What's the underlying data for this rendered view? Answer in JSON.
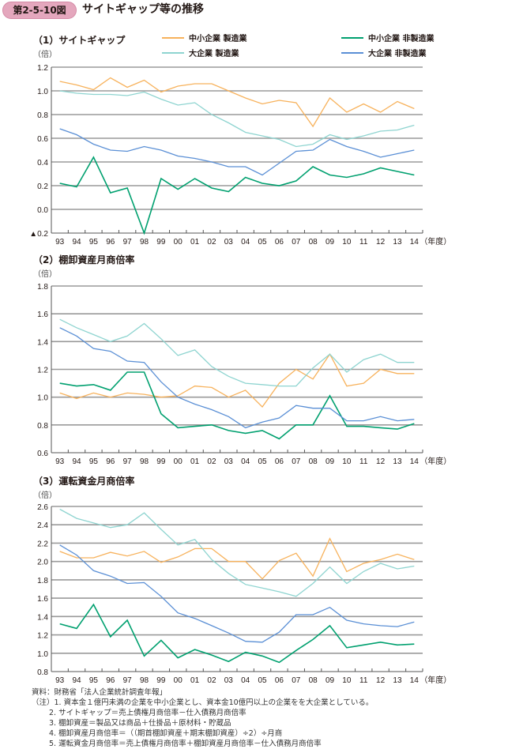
{
  "header": {
    "figure_number": "第2-5-10図",
    "title": "サイトギャップ等の推移"
  },
  "legend": [
    {
      "label": "中小企業 製造業",
      "color": "#f7b25c"
    },
    {
      "label": "中小企業 非製造業",
      "color": "#00a06f"
    },
    {
      "label": "大企業 製造業",
      "color": "#8ed4d0"
    },
    {
      "label": "大企業 非製造業",
      "color": "#5a8fd5"
    }
  ],
  "chart_data": [
    {
      "type": "line",
      "title": "（1）サイトギャップ",
      "ylabel": "（倍）",
      "xlabel_suffix": "（年度）",
      "ylim": [
        -0.2,
        1.2
      ],
      "yticks": [
        -0.2,
        0.0,
        0.2,
        0.4,
        0.6,
        0.8,
        1.0,
        1.2
      ],
      "ytick_labels": [
        "▲0.2",
        "0.0",
        "0.2",
        "0.4",
        "0.6",
        "0.8",
        "1.0",
        "1.2"
      ],
      "grid": true,
      "legend_position": "top",
      "categories": [
        "93",
        "94",
        "95",
        "96",
        "97",
        "98",
        "99",
        "00",
        "01",
        "02",
        "03",
        "04",
        "05",
        "06",
        "07",
        "08",
        "09",
        "10",
        "11",
        "12",
        "13",
        "14"
      ],
      "series": [
        {
          "name": "中小企業 製造業",
          "values": [
            1.08,
            1.05,
            1.01,
            1.11,
            1.03,
            1.09,
            0.99,
            1.04,
            1.06,
            1.06,
            1.0,
            0.94,
            0.89,
            0.92,
            0.9,
            0.7,
            0.94,
            0.82,
            0.89,
            0.82,
            0.91,
            0.85
          ]
        },
        {
          "name": "中小企業 非製造業",
          "values": [
            0.22,
            0.19,
            0.44,
            0.14,
            0.18,
            -0.2,
            0.26,
            0.17,
            0.26,
            0.18,
            0.15,
            0.27,
            0.22,
            0.2,
            0.24,
            0.36,
            0.29,
            0.27,
            0.3,
            0.35,
            0.32,
            0.29
          ]
        },
        {
          "name": "大企業 製造業",
          "values": [
            1.0,
            0.98,
            0.97,
            0.97,
            0.96,
            0.99,
            0.93,
            0.88,
            0.9,
            0.8,
            0.73,
            0.65,
            0.62,
            0.59,
            0.53,
            0.55,
            0.63,
            0.59,
            0.62,
            0.66,
            0.67,
            0.71
          ]
        },
        {
          "name": "大企業 非製造業",
          "values": [
            0.68,
            0.63,
            0.55,
            0.5,
            0.49,
            0.53,
            0.5,
            0.45,
            0.43,
            0.4,
            0.36,
            0.36,
            0.29,
            0.39,
            0.49,
            0.5,
            0.59,
            0.53,
            0.49,
            0.44,
            0.47,
            0.5
          ]
        }
      ]
    },
    {
      "type": "line",
      "title": "（2）棚卸資産月商倍率",
      "ylabel": "（倍）",
      "xlabel_suffix": "（年度）",
      "ylim": [
        0.6,
        1.8
      ],
      "yticks": [
        0.6,
        0.8,
        1.0,
        1.2,
        1.4,
        1.6,
        1.8
      ],
      "ytick_labels": [
        "0.6",
        "0.8",
        "1.0",
        "1.2",
        "1.4",
        "1.6",
        "1.8"
      ],
      "grid": true,
      "categories": [
        "93",
        "94",
        "95",
        "96",
        "97",
        "98",
        "99",
        "00",
        "01",
        "02",
        "03",
        "04",
        "05",
        "06",
        "07",
        "08",
        "09",
        "10",
        "11",
        "12",
        "13",
        "14"
      ],
      "series": [
        {
          "name": "中小企業 製造業",
          "values": [
            1.03,
            0.99,
            1.03,
            1.0,
            1.03,
            1.02,
            1.0,
            1.01,
            1.08,
            1.07,
            1.0,
            1.05,
            0.93,
            1.1,
            1.2,
            1.13,
            1.31,
            1.08,
            1.1,
            1.2,
            1.17,
            1.17
          ]
        },
        {
          "name": "中小企業 非製造業",
          "values": [
            1.1,
            1.08,
            1.09,
            1.05,
            1.18,
            1.18,
            0.88,
            0.78,
            0.79,
            0.8,
            0.76,
            0.74,
            0.76,
            0.7,
            0.8,
            0.8,
            1.01,
            0.79,
            0.79,
            0.78,
            0.77,
            0.81
          ]
        },
        {
          "name": "大企業 製造業",
          "values": [
            1.56,
            1.5,
            1.45,
            1.4,
            1.44,
            1.53,
            1.42,
            1.3,
            1.34,
            1.22,
            1.15,
            1.1,
            1.09,
            1.08,
            1.08,
            1.21,
            1.31,
            1.18,
            1.27,
            1.31,
            1.25,
            1.25
          ]
        },
        {
          "name": "大企業 非製造業",
          "values": [
            1.5,
            1.44,
            1.35,
            1.33,
            1.26,
            1.25,
            1.11,
            1.0,
            0.95,
            0.91,
            0.86,
            0.78,
            0.82,
            0.85,
            0.94,
            0.92,
            0.92,
            0.83,
            0.83,
            0.86,
            0.83,
            0.84
          ]
        }
      ]
    },
    {
      "type": "line",
      "title": "（3）運転資金月商倍率",
      "ylabel": "（倍）",
      "xlabel_suffix": "（年度）",
      "ylim": [
        0.8,
        2.6
      ],
      "yticks": [
        0.8,
        1.0,
        1.2,
        1.4,
        1.6,
        1.8,
        2.0,
        2.2,
        2.4,
        2.6
      ],
      "ytick_labels": [
        "0.8",
        "1.0",
        "1.2",
        "1.4",
        "1.6",
        "1.8",
        "2.0",
        "2.2",
        "2.4",
        "2.6"
      ],
      "grid": true,
      "categories": [
        "93",
        "94",
        "95",
        "96",
        "97",
        "98",
        "99",
        "00",
        "01",
        "02",
        "03",
        "04",
        "05",
        "06",
        "07",
        "08",
        "09",
        "10",
        "11",
        "12",
        "13",
        "14"
      ],
      "series": [
        {
          "name": "中小企業 製造業",
          "values": [
            2.11,
            2.04,
            2.04,
            2.1,
            2.06,
            2.11,
            1.99,
            2.05,
            2.14,
            2.14,
            2.0,
            2.0,
            1.81,
            2.01,
            2.09,
            1.84,
            2.25,
            1.89,
            1.98,
            2.02,
            2.08,
            2.02
          ]
        },
        {
          "name": "中小企業 非製造業",
          "values": [
            1.32,
            1.27,
            1.53,
            1.18,
            1.36,
            0.97,
            1.14,
            0.95,
            1.04,
            0.98,
            0.91,
            1.01,
            0.97,
            0.9,
            1.03,
            1.15,
            1.3,
            1.06,
            1.09,
            1.12,
            1.09,
            1.1
          ]
        },
        {
          "name": "大企業 製造業",
          "values": [
            2.57,
            2.47,
            2.42,
            2.37,
            2.4,
            2.53,
            2.35,
            2.18,
            2.24,
            2.02,
            1.87,
            1.75,
            1.71,
            1.67,
            1.62,
            1.76,
            1.94,
            1.76,
            1.89,
            1.98,
            1.92,
            1.95
          ]
        },
        {
          "name": "大企業 非製造業",
          "values": [
            2.18,
            2.07,
            1.9,
            1.84,
            1.76,
            1.77,
            1.62,
            1.44,
            1.38,
            1.3,
            1.22,
            1.13,
            1.12,
            1.23,
            1.42,
            1.42,
            1.5,
            1.36,
            1.32,
            1.3,
            1.29,
            1.34
          ]
        }
      ]
    }
  ],
  "notes": {
    "source": "資料：財務省「法人企業統計調査年報」",
    "items": [
      "（注）1. 資本金１億円未満の企業を中小企業とし、資本金10億円以上の企業をを大企業としている。",
      "2. サイトギャップ＝売上債権月商倍率－仕入債務月商倍率",
      "3. 棚卸資産＝製品又は商品＋仕掛品＋原材料・貯蔵品",
      "4. 棚卸資産月商倍率＝（（期首棚卸資産＋期末棚卸資産）÷2）÷月商",
      "5. 運転資金月商倍率＝売上債権月商倍率＋棚卸資産月商倍率－仕入債務月商倍率"
    ]
  }
}
